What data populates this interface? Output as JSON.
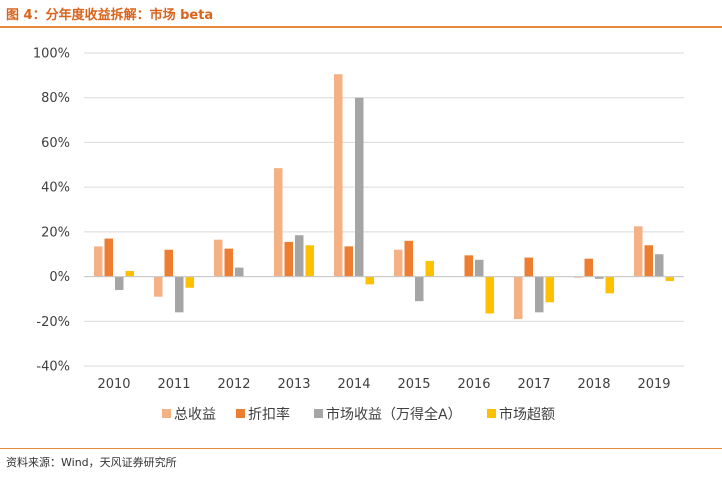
{
  "figure": {
    "title": "图 4：分年度收益拆解：市场 beta",
    "source": "资料来源：Wind，天风证券研究所"
  },
  "chart_data": {
    "type": "bar",
    "categories": [
      "2010",
      "2011",
      "2012",
      "2013",
      "2014",
      "2015",
      "2016",
      "2017",
      "2018",
      "2019"
    ],
    "series": [
      {
        "name": "总收益",
        "color": "#f4b183",
        "values": [
          13.5,
          -9,
          16.5,
          48.5,
          90.5,
          12,
          0,
          -19,
          -0.5,
          22.5
        ]
      },
      {
        "name": "折扣率",
        "color": "#ed7d31",
        "values": [
          17,
          12,
          12.5,
          15.5,
          13.5,
          16,
          9.5,
          8.5,
          8,
          14
        ]
      },
      {
        "name": "市场收益（万得全A）",
        "color": "#a5a5a5",
        "values": [
          -6,
          -16,
          4,
          18.5,
          80,
          -11,
          7.5,
          -16,
          -1,
          10
        ]
      },
      {
        "name": "市场超额",
        "color": "#ffc000",
        "values": [
          2.5,
          -5,
          0,
          14,
          -3.5,
          7,
          -16.5,
          -11.5,
          -7.5,
          -2
        ]
      }
    ],
    "yticks": [
      "100%",
      "80%",
      "60%",
      "40%",
      "20%",
      "0%",
      "-20%",
      "-40%"
    ],
    "ylim": [
      -40,
      100
    ],
    "grid": true,
    "legend_position": "bottom",
    "title": "",
    "xlabel": "",
    "ylabel": ""
  }
}
